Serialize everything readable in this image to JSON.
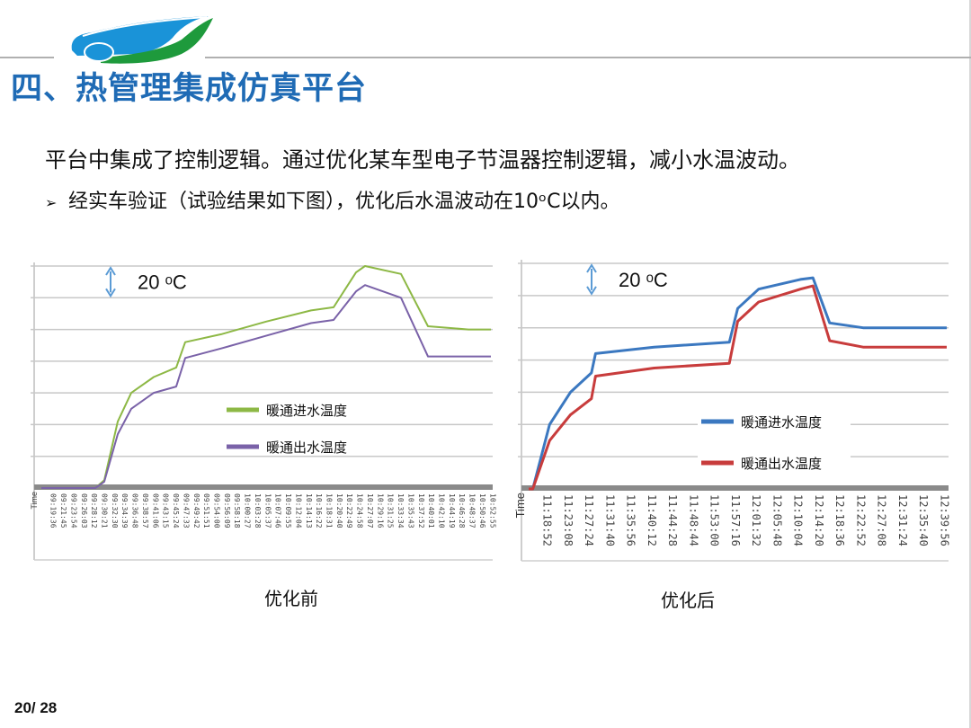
{
  "header": {
    "title": "四、热管理集成仿真平台",
    "logo": "car-leaf-logo"
  },
  "body": {
    "paragraph": "平台中集成了控制逻辑。通过优化某车型电子节温器控制逻辑，减小水温波动。",
    "bullet_icon": "arrow-bullet-icon",
    "bullet": "经实车验证（试验结果如下图），优化后水温波动在10ᵒC以内。"
  },
  "captions": {
    "before": "优化前",
    "after": "优化后"
  },
  "footer": {
    "page": "20/ 28"
  },
  "colors": {
    "title_blue": "#1f6bb5",
    "before_inlet": "#8db845",
    "before_outlet": "#7a62a8",
    "after_inlet": "#3b78c0",
    "after_outlet": "#c83c3c",
    "annotation_arrow": "#5b9bd5",
    "grid": "#c8c8c8",
    "baseline": "#8a8a8a"
  },
  "chart_data": [
    {
      "id": "before",
      "type": "line",
      "title": "优化前",
      "xlabel": "Time",
      "ylabel": "",
      "annotation": "20 ᵒC",
      "grid_step_c": 20,
      "y_gridlines": 7,
      "ylim": [
        0,
        140
      ],
      "legend": [
        "暖通进水温度",
        "暖通出水温度"
      ],
      "legend_position": "center-right inside plot",
      "x_tick_labels": [
        "09:19:36",
        "09:21:45",
        "09:23:54",
        "09:26:03",
        "09:28:12",
        "09:30:21",
        "09:32:30",
        "09:34:39",
        "09:36:48",
        "09:38:57",
        "09:41:06",
        "09:43:15",
        "09:45:24",
        "09:47:33",
        "09:49:42",
        "09:51:51",
        "09:54:00",
        "09:56:09",
        "09:58:18",
        "10:00:27",
        "10:03:28",
        "10:05:37",
        "10:07:46",
        "10:09:55",
        "10:12:04",
        "10:14:13",
        "10:16:22",
        "10:18:31",
        "10:20:40",
        "10:22:49",
        "10:24:58",
        "10:27:07",
        "10:29:16",
        "10:31:25",
        "10:33:34",
        "10:35:43",
        "10:37:52",
        "10:40:01",
        "10:42:10",
        "10:44:19",
        "10:46:28",
        "10:48:37",
        "10:50:46",
        "10:52:55"
      ],
      "x": [
        0,
        0.12,
        0.14,
        0.17,
        0.2,
        0.25,
        0.3,
        0.32,
        0.4,
        0.5,
        0.6,
        0.65,
        0.7,
        0.72,
        0.8,
        0.86,
        0.95,
        1.0
      ],
      "series": [
        {
          "name": "暖通进水温度",
          "values": [
            0,
            0,
            5,
            42,
            60,
            70,
            76,
            92,
            97,
            105,
            112,
            114,
            136,
            140,
            135,
            102,
            100,
            100
          ]
        },
        {
          "name": "暖通出水温度",
          "values": [
            0,
            0,
            4,
            34,
            50,
            60,
            64,
            82,
            88,
            96,
            104,
            106,
            124,
            128,
            120,
            83,
            83,
            83
          ]
        }
      ]
    },
    {
      "id": "after",
      "type": "line",
      "title": "优化后",
      "xlabel": "Time",
      "ylabel": "",
      "annotation": "20 ᵒC",
      "grid_step_c": 20,
      "y_gridlines": 7,
      "ylim": [
        0,
        140
      ],
      "legend": [
        "暖通进水温度",
        "暖通出水温度"
      ],
      "legend_position": "center-right inside plot",
      "x_tick_labels": [
        "11:18:52",
        "11:23:08",
        "11:27:24",
        "11:31:40",
        "11:35:56",
        "11:40:12",
        "11:44:28",
        "11:48:44",
        "11:53:00",
        "11:57:16",
        "12:01:32",
        "12:05:48",
        "12:10:04",
        "12:14:20",
        "12:18:36",
        "12:22:52",
        "12:27:08",
        "12:31:24",
        "12:35:40",
        "12:39:56"
      ],
      "x": [
        0,
        0.01,
        0.05,
        0.1,
        0.15,
        0.16,
        0.3,
        0.48,
        0.5,
        0.55,
        0.65,
        0.68,
        0.72,
        0.8,
        1.0
      ],
      "series": [
        {
          "name": "暖通进水温度",
          "values": [
            0,
            0,
            40,
            60,
            72,
            84,
            88,
            91,
            112,
            124,
            130,
            131,
            103,
            100,
            100
          ]
        },
        {
          "name": "暖通出水温度",
          "values": [
            0,
            0,
            30,
            46,
            56,
            70,
            75,
            78,
            104,
            116,
            124,
            126,
            92,
            88,
            88
          ]
        }
      ]
    }
  ]
}
